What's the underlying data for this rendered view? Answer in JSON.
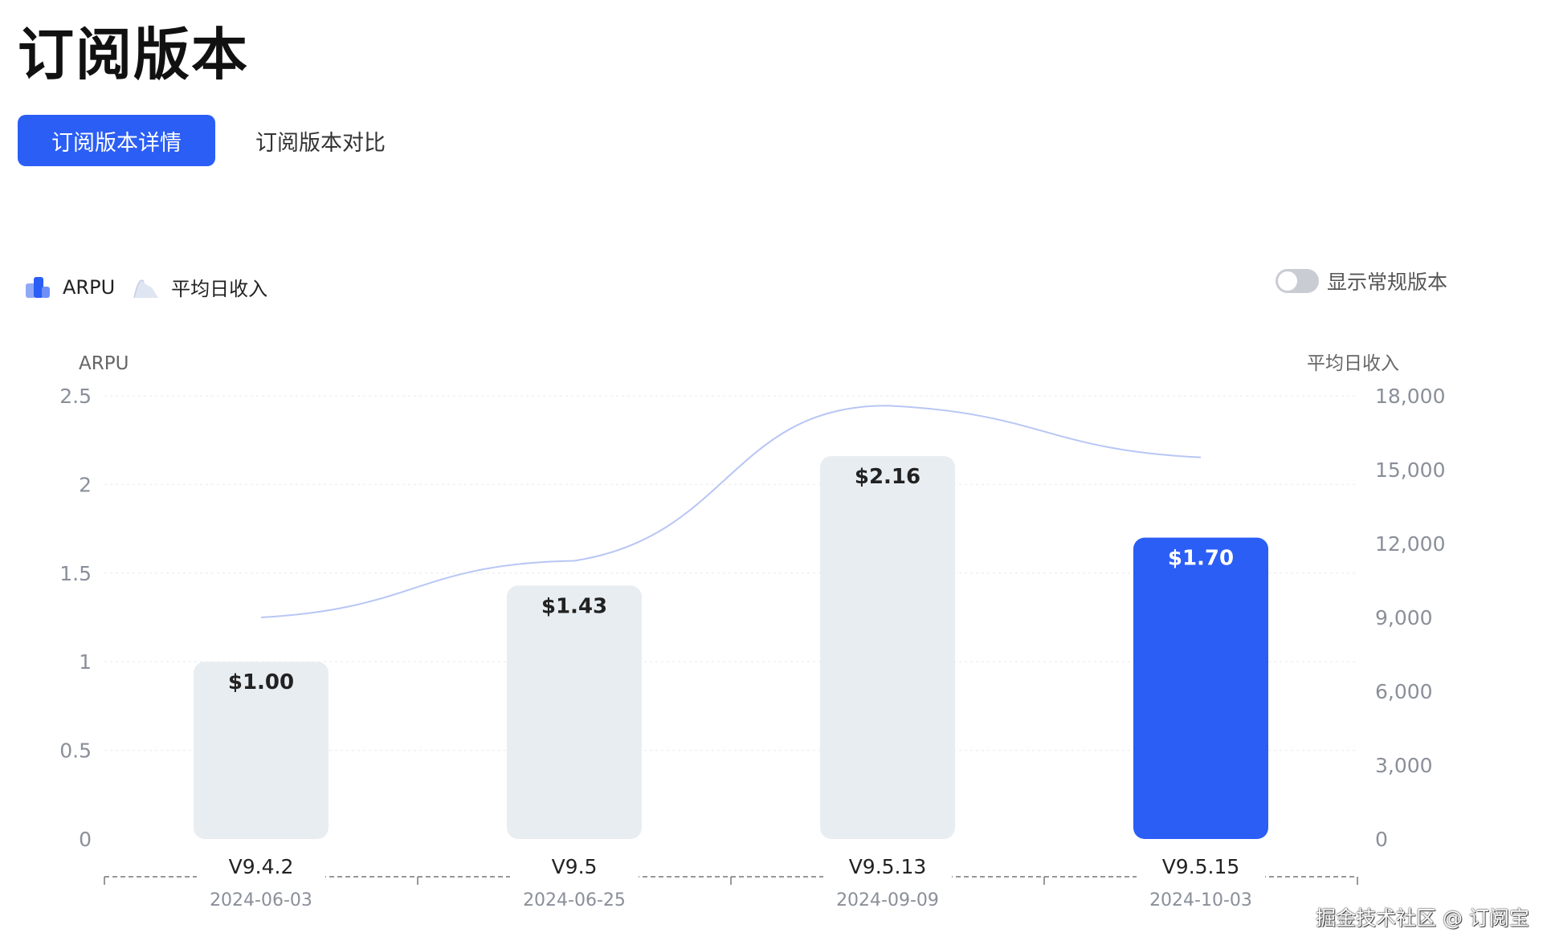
{
  "page": {
    "title": "订阅版本",
    "tabs": [
      {
        "label": "订阅版本详情",
        "active": true
      },
      {
        "label": "订阅版本对比",
        "active": false
      }
    ],
    "toggle": {
      "label": "显示常规版本",
      "on": false
    },
    "watermark": "掘金技术社区 @ 订阅宝"
  },
  "colors": {
    "accent": "#2b5ef5",
    "bar": "#e8edf1",
    "line": "#b8c6f5",
    "axis_text": "#8a8f99",
    "grid": "#eef0f3"
  },
  "chart_data": {
    "type": "bar",
    "legend": [
      {
        "name": "ARPU",
        "icon": "bar-legend-icon"
      },
      {
        "name": "平均日收入",
        "icon": "area-legend-icon"
      }
    ],
    "legend_position": "top-left",
    "ylabel_left": "ARPU",
    "ylabel_right": "平均日收入",
    "ylim_left": [
      0,
      2.5
    ],
    "ylim_right": [
      0,
      18000
    ],
    "yticks_left": [
      "0",
      "0.5",
      "1",
      "1.5",
      "2",
      "2.5"
    ],
    "yticks_right": [
      "0",
      "3,000",
      "6,000",
      "9,000",
      "12,000",
      "15,000",
      "18,000"
    ],
    "categories": [
      "V9.4.2",
      "V9.5",
      "V9.5.13",
      "V9.5.15"
    ],
    "dates": [
      "2024-06-03",
      "2024-06-25",
      "2024-09-09",
      "2024-10-03"
    ],
    "series": [
      {
        "name": "ARPU",
        "type": "bar",
        "axis": "left",
        "values": [
          1.0,
          1.43,
          2.16,
          1.7
        ],
        "labels": [
          "$1.00",
          "$1.43",
          "$2.16",
          "$1.70"
        ],
        "highlight_index": 3
      },
      {
        "name": "平均日收入",
        "type": "line",
        "axis": "right",
        "values": [
          9000,
          11300,
          17600,
          15500
        ]
      }
    ],
    "grid": true
  }
}
